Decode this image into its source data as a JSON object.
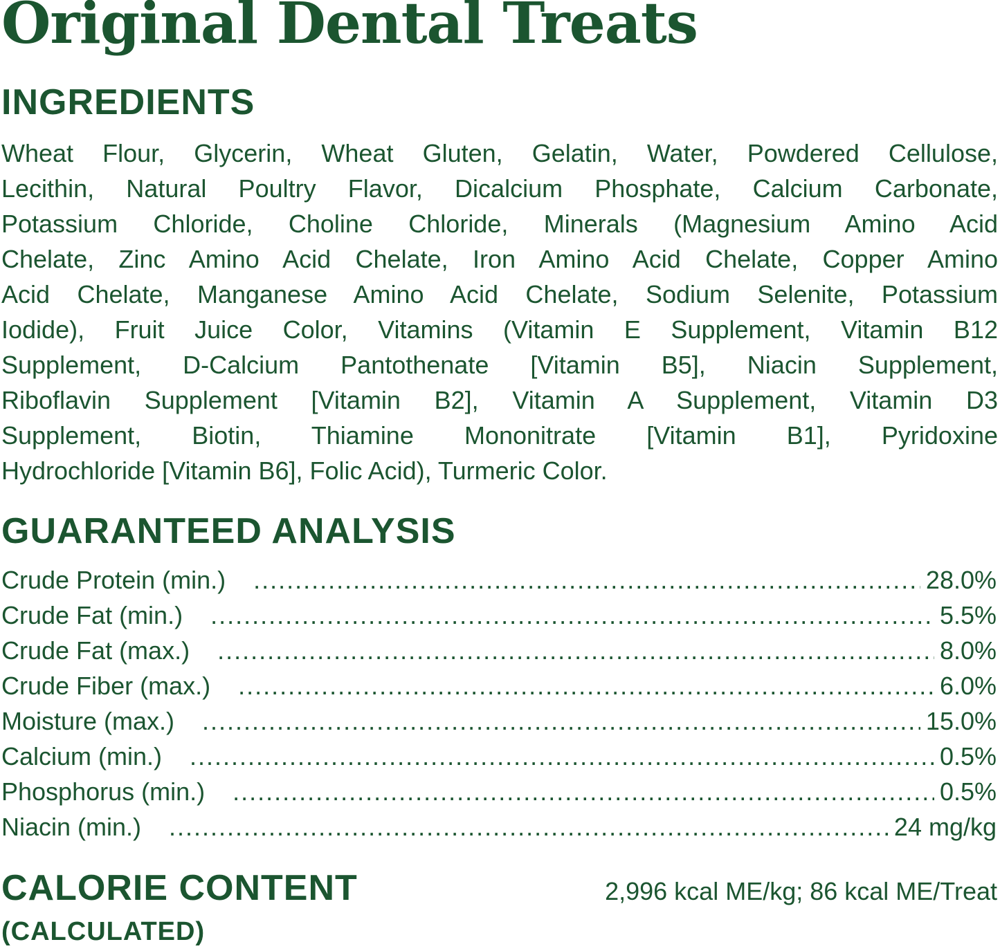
{
  "title": "Original Dental Treats",
  "ingredients": {
    "heading": "INGREDIENTS",
    "lines": [
      "Wheat Flour, Glycerin, Wheat Gluten, Gelatin, Water, Powdered Cellulose,",
      "Lecithin, Natural Poultry Flavor, Dicalcium Phosphate, Calcium Carbonate,",
      "Potassium Chloride, Choline Chloride, Minerals (Magnesium Amino Acid",
      "Chelate, Zinc Amino Acid Chelate, Iron Amino Acid Chelate, Copper Amino",
      "Acid Chelate, Manganese Amino Acid Chelate, Sodium Selenite, Potassium",
      "Iodide), Fruit Juice Color, Vitamins (Vitamin E Supplement, Vitamin B12",
      "Supplement, D-Calcium Pantothenate [Vitamin B5], Niacin Supplement,",
      "Riboflavin Supplement [Vitamin B2], Vitamin A Supplement, Vitamin D3",
      "Supplement, Biotin, Thiamine Mononitrate [Vitamin B1], Pyridoxine",
      "Hydrochloride [Vitamin B6], Folic Acid), Turmeric Color."
    ]
  },
  "analysis": {
    "heading": "GUARANTEED ANALYSIS",
    "rows": [
      {
        "label": "Crude Protein (min.)",
        "value": "28.0%"
      },
      {
        "label": "Crude Fat (min.)",
        "value": "5.5%"
      },
      {
        "label": "Crude Fat (max.)",
        "value": "8.0%"
      },
      {
        "label": "Crude Fiber (max.)",
        "value": "6.0%"
      },
      {
        "label": "Moisture (max.)",
        "value": "15.0%"
      },
      {
        "label": "Calcium (min.)",
        "value": "0.5%"
      },
      {
        "label": "Phosphorus (min.)",
        "value": "0.5%"
      },
      {
        "label": "Niacin (min.)",
        "value": "24 mg/kg"
      }
    ]
  },
  "calorie": {
    "heading": "CALORIE CONTENT",
    "subheading": "(CALCULATED)",
    "value": "2,996 kcal ME/kg; 86 kcal ME/Treat"
  },
  "colors": {
    "text": "#1b5530",
    "background": "#ffffff"
  }
}
